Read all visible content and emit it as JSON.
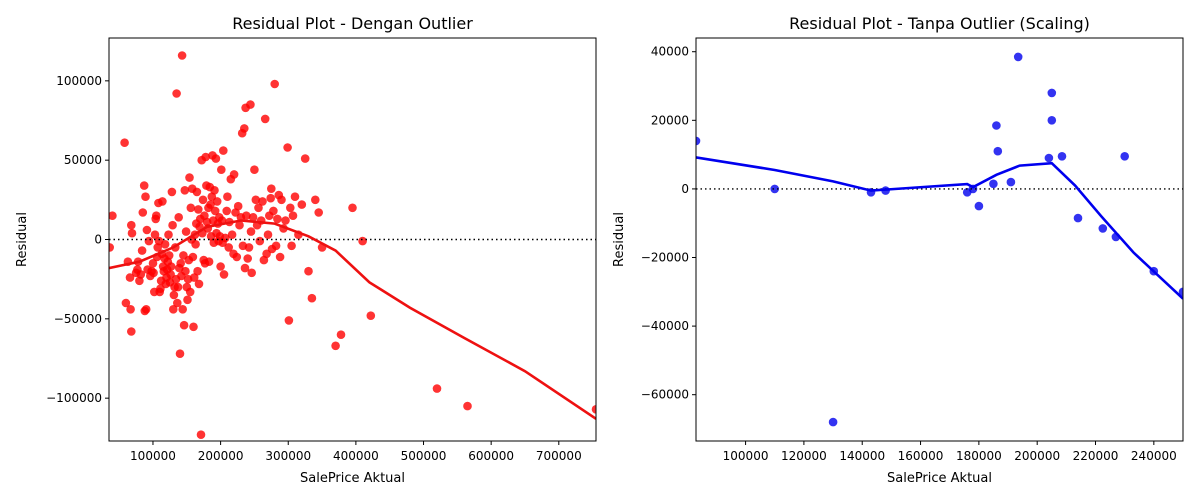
{
  "chart_data": [
    {
      "type": "scatter",
      "title": "Residual Plot - Dengan Outlier",
      "xlabel": "SalePrice Aktual",
      "ylabel": "Residual",
      "xlim": [
        35000,
        755000
      ],
      "ylim": [
        -127000,
        127000
      ],
      "xticks": [
        100000,
        200000,
        300000,
        400000,
        500000,
        600000,
        700000
      ],
      "xtick_labels": [
        "100000",
        "200000",
        "300000",
        "400000",
        "500000",
        "600000",
        "700000"
      ],
      "yticks": [
        -100000,
        -50000,
        0,
        50000,
        100000
      ],
      "ytick_labels": [
        "−100000",
        "−50000",
        "0",
        "50000",
        "100000"
      ],
      "grid": false,
      "zero_line": true,
      "point_color": "#ff0000",
      "line_color": "#ee1111",
      "points": [
        [
          36000,
          -5000
        ],
        [
          40000,
          15000
        ],
        [
          58000,
          61000
        ],
        [
          60000,
          -40000
        ],
        [
          63000,
          -14000
        ],
        [
          66000,
          -24000
        ],
        [
          67000,
          -44000
        ],
        [
          68000,
          -58000
        ],
        [
          68000,
          9000
        ],
        [
          69000,
          4000
        ],
        [
          75000,
          -21000
        ],
        [
          77000,
          -19000
        ],
        [
          78000,
          -14000
        ],
        [
          80000,
          -26000
        ],
        [
          82000,
          -22000
        ],
        [
          84000,
          -7000
        ],
        [
          85000,
          17000
        ],
        [
          87000,
          34000
        ],
        [
          89000,
          27000
        ],
        [
          88000,
          -45000
        ],
        [
          90000,
          -44000
        ],
        [
          91000,
          6000
        ],
        [
          92000,
          -19000
        ],
        [
          94000,
          -1000
        ],
        [
          96000,
          -23000
        ],
        [
          98000,
          -20000
        ],
        [
          100000,
          -15000
        ],
        [
          101000,
          -21000
        ],
        [
          102000,
          -33000
        ],
        [
          103000,
          3000
        ],
        [
          104000,
          13000
        ],
        [
          105000,
          15000
        ],
        [
          106000,
          -11000
        ],
        [
          107000,
          -5000
        ],
        [
          108000,
          23000
        ],
        [
          109000,
          -1000
        ],
        [
          110000,
          -33000
        ],
        [
          111000,
          -31000
        ],
        [
          112000,
          -26000
        ],
        [
          113000,
          -9000
        ],
        [
          114000,
          24000
        ],
        [
          115000,
          -17000
        ],
        [
          116000,
          -20000
        ],
        [
          117000,
          -12000
        ],
        [
          118000,
          -3000
        ],
        [
          119000,
          -28000
        ],
        [
          120000,
          -24000
        ],
        [
          121000,
          -19000
        ],
        [
          122000,
          -14000
        ],
        [
          123000,
          3000
        ],
        [
          124000,
          -10000
        ],
        [
          125000,
          -27000
        ],
        [
          126000,
          -22000
        ],
        [
          127000,
          -17000
        ],
        [
          128000,
          30000
        ],
        [
          129000,
          9000
        ],
        [
          130000,
          -44000
        ],
        [
          131000,
          -35000
        ],
        [
          132000,
          -30000
        ],
        [
          133000,
          -5000
        ],
        [
          134000,
          -25000
        ],
        [
          135000,
          92000
        ],
        [
          136000,
          -40000
        ],
        [
          137000,
          -30000
        ],
        [
          138000,
          14000
        ],
        [
          139000,
          -18000
        ],
        [
          140000,
          -72000
        ],
        [
          141000,
          -15000
        ],
        [
          142000,
          -23000
        ],
        [
          143000,
          116000
        ],
        [
          144000,
          -44000
        ],
        [
          145000,
          -10000
        ],
        [
          146000,
          -54000
        ],
        [
          147000,
          31000
        ],
        [
          148000,
          -20000
        ],
        [
          149000,
          5000
        ],
        [
          150000,
          -30000
        ],
        [
          151000,
          -38000
        ],
        [
          152000,
          -25000
        ],
        [
          153000,
          -13000
        ],
        [
          154000,
          39000
        ],
        [
          155000,
          -33000
        ],
        [
          156000,
          20000
        ],
        [
          157000,
          0
        ],
        [
          158000,
          32000
        ],
        [
          159000,
          -11000
        ],
        [
          160000,
          -55000
        ],
        [
          161000,
          -24000
        ],
        [
          162000,
          3000
        ],
        [
          163000,
          -3000
        ],
        [
          164000,
          10000
        ],
        [
          165000,
          30000
        ],
        [
          166000,
          -20000
        ],
        [
          167000,
          19000
        ],
        [
          168000,
          -28000
        ],
        [
          169000,
          8000
        ],
        [
          170000,
          13000
        ],
        [
          171000,
          -123000
        ],
        [
          172000,
          50000
        ],
        [
          173000,
          4000
        ],
        [
          174000,
          25000
        ],
        [
          175000,
          -13000
        ],
        [
          176000,
          15000
        ],
        [
          177000,
          -15000
        ],
        [
          178000,
          52000
        ],
        [
          179000,
          34000
        ],
        [
          180000,
          11000
        ],
        [
          181000,
          7000
        ],
        [
          182000,
          20000
        ],
        [
          183000,
          -14000
        ],
        [
          184000,
          33000
        ],
        [
          185000,
          22000
        ],
        [
          186000,
          2000
        ],
        [
          187000,
          27000
        ],
        [
          188000,
          53000
        ],
        [
          189000,
          12000
        ],
        [
          190000,
          -2000
        ],
        [
          191000,
          31000
        ],
        [
          192000,
          18000
        ],
        [
          193000,
          51000
        ],
        [
          194000,
          4000
        ],
        [
          195000,
          24000
        ],
        [
          196000,
          10000
        ],
        [
          197000,
          -1000
        ],
        [
          198000,
          14000
        ],
        [
          199000,
          2000
        ],
        [
          200000,
          -17000
        ],
        [
          201000,
          44000
        ],
        [
          202000,
          12000
        ],
        [
          203000,
          -2000
        ],
        [
          204000,
          56000
        ],
        [
          205000,
          -22000
        ],
        [
          207000,
          1000
        ],
        [
          209000,
          18000
        ],
        [
          210000,
          27000
        ],
        [
          212000,
          -5000
        ],
        [
          213000,
          11000
        ],
        [
          215000,
          38000
        ],
        [
          217000,
          3000
        ],
        [
          219000,
          -9000
        ],
        [
          220000,
          41000
        ],
        [
          222000,
          17000
        ],
        [
          224000,
          -11000
        ],
        [
          226000,
          21000
        ],
        [
          228000,
          9000
        ],
        [
          230000,
          14000
        ],
        [
          232000,
          67000
        ],
        [
          233000,
          -4000
        ],
        [
          235000,
          70000
        ],
        [
          236000,
          -18000
        ],
        [
          237000,
          83000
        ],
        [
          238000,
          15000
        ],
        [
          240000,
          -12000
        ],
        [
          242000,
          -5000
        ],
        [
          244000,
          85000
        ],
        [
          245000,
          5000
        ],
        [
          246000,
          -21000
        ],
        [
          248000,
          14000
        ],
        [
          250000,
          44000
        ],
        [
          252000,
          25000
        ],
        [
          254000,
          9000
        ],
        [
          256000,
          20000
        ],
        [
          258000,
          -1000
        ],
        [
          260000,
          12000
        ],
        [
          262000,
          24000
        ],
        [
          264000,
          -13000
        ],
        [
          266000,
          76000
        ],
        [
          268000,
          -9000
        ],
        [
          270000,
          3000
        ],
        [
          272000,
          15000
        ],
        [
          274000,
          26000
        ],
        [
          275000,
          32000
        ],
        [
          276000,
          -6000
        ],
        [
          278000,
          18000
        ],
        [
          280000,
          98000
        ],
        [
          282000,
          -4000
        ],
        [
          284000,
          13000
        ],
        [
          286000,
          28000
        ],
        [
          288000,
          -11000
        ],
        [
          290000,
          25000
        ],
        [
          293000,
          7000
        ],
        [
          296000,
          12000
        ],
        [
          299000,
          58000
        ],
        [
          301000,
          -51000
        ],
        [
          303000,
          20000
        ],
        [
          305000,
          -4000
        ],
        [
          307000,
          15000
        ],
        [
          310000,
          27000
        ],
        [
          315000,
          3000
        ],
        [
          320000,
          22000
        ],
        [
          325000,
          51000
        ],
        [
          330000,
          -20000
        ],
        [
          335000,
          -37000
        ],
        [
          340000,
          25000
        ],
        [
          345000,
          17000
        ],
        [
          350000,
          -5000
        ],
        [
          370000,
          -67000
        ],
        [
          378000,
          -60000
        ],
        [
          395000,
          20000
        ],
        [
          410000,
          -1000
        ],
        [
          422000,
          -48000
        ],
        [
          520000,
          -94000
        ],
        [
          565000,
          -105000
        ],
        [
          755000,
          -107000
        ]
      ],
      "trend": [
        [
          35000,
          -18000
        ],
        [
          80000,
          -14000
        ],
        [
          130000,
          -5000
        ],
        [
          180000,
          8000
        ],
        [
          230000,
          12000
        ],
        [
          280000,
          10000
        ],
        [
          330000,
          2000
        ],
        [
          370000,
          -7000
        ],
        [
          420000,
          -27000
        ],
        [
          480000,
          -43000
        ],
        [
          560000,
          -62000
        ],
        [
          650000,
          -83000
        ],
        [
          755000,
          -113000
        ]
      ]
    },
    {
      "type": "scatter",
      "title": "Residual Plot - Tanpa Outlier (Scaling)",
      "xlabel": "SalePrice Aktual",
      "ylabel": "Residual",
      "xlim": [
        83000,
        250000
      ],
      "ylim": [
        -73500,
        44000
      ],
      "xticks": [
        100000,
        120000,
        140000,
        160000,
        180000,
        200000,
        220000,
        240000
      ],
      "xtick_labels": [
        "100000",
        "120000",
        "140000",
        "160000",
        "180000",
        "200000",
        "220000",
        "240000"
      ],
      "yticks": [
        -60000,
        -40000,
        -20000,
        0,
        20000,
        40000
      ],
      "ytick_labels": [
        "−60000",
        "−40000",
        "−20000",
        "0",
        "20000",
        "40000"
      ],
      "grid": false,
      "zero_line": true,
      "point_color": "#0000ee",
      "line_color": "#0000ee",
      "points": [
        [
          83000,
          14000
        ],
        [
          110000,
          0
        ],
        [
          130000,
          -68000
        ],
        [
          143000,
          -1000
        ],
        [
          148000,
          -500
        ],
        [
          176000,
          -1000
        ],
        [
          178000,
          0
        ],
        [
          180000,
          -5000
        ],
        [
          185000,
          1500
        ],
        [
          186000,
          18500
        ],
        [
          186500,
          11000
        ],
        [
          191000,
          2000
        ],
        [
          193500,
          38500
        ],
        [
          204000,
          9000
        ],
        [
          205000,
          28000
        ],
        [
          205000,
          20000
        ],
        [
          208500,
          9500
        ],
        [
          214000,
          -8500
        ],
        [
          222500,
          -11500
        ],
        [
          227000,
          -14000
        ],
        [
          230000,
          9500
        ],
        [
          240000,
          -24000
        ],
        [
          250000,
          -30000
        ]
      ],
      "trend": [
        [
          83000,
          9200
        ],
        [
          110000,
          5500
        ],
        [
          130000,
          2200
        ],
        [
          143000,
          -500
        ],
        [
          148000,
          -200
        ],
        [
          176000,
          1400
        ],
        [
          178000,
          500
        ],
        [
          186000,
          4100
        ],
        [
          194000,
          6800
        ],
        [
          205000,
          7500
        ],
        [
          213000,
          1000
        ],
        [
          222000,
          -8000
        ],
        [
          233000,
          -18500
        ],
        [
          250000,
          -32000
        ]
      ]
    }
  ]
}
